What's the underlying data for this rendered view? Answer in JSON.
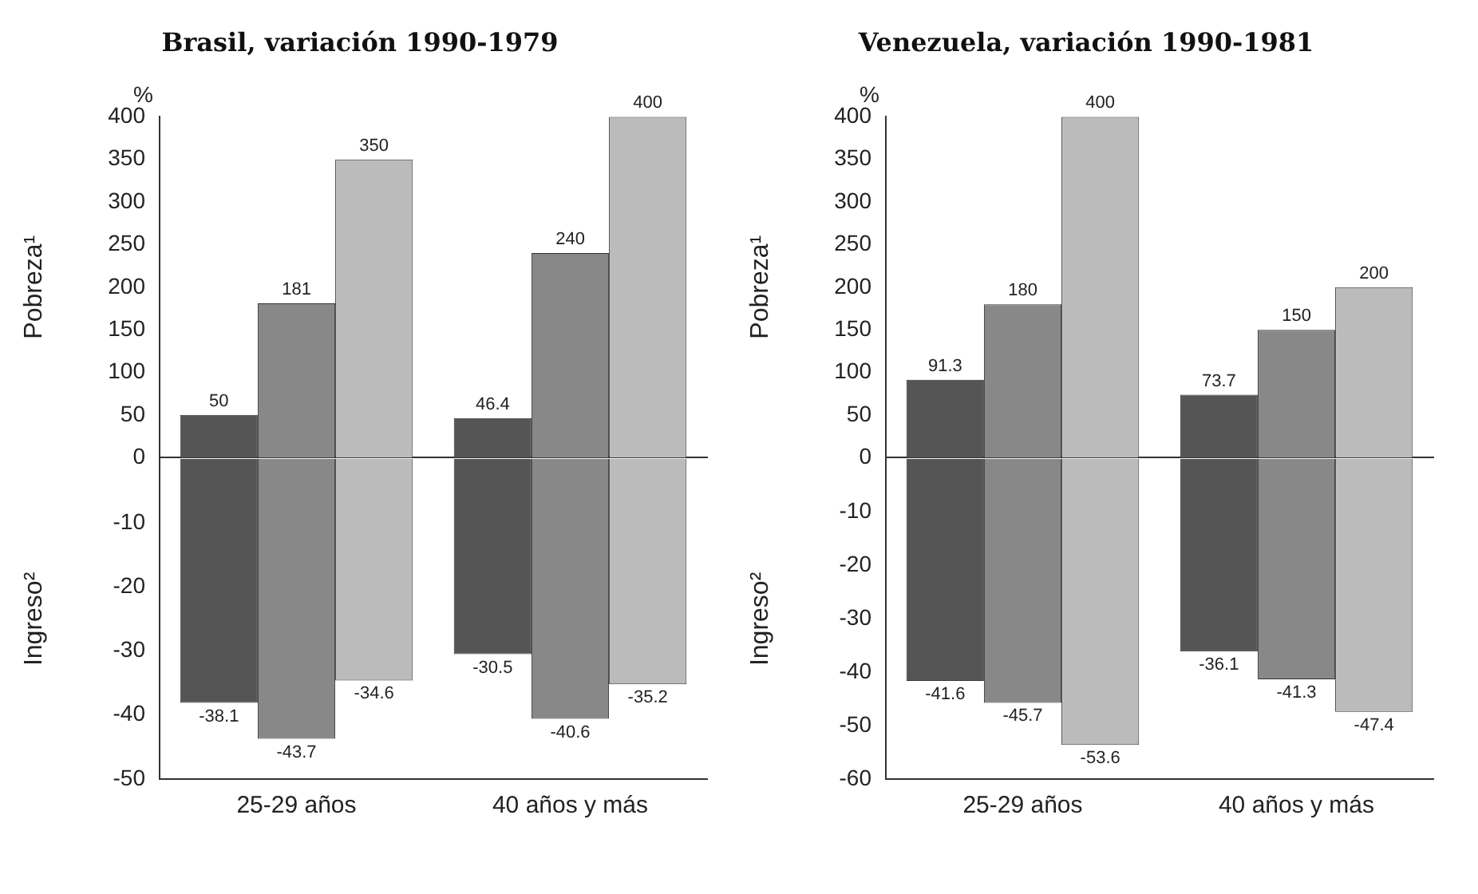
{
  "chart_data": [
    {
      "type": "bar",
      "title": "Brasil, variación 1990-1979",
      "ylabel": "Pobreza¹",
      "annotations": [
        "%"
      ],
      "categories": [
        null,
        null
      ],
      "tick_labels": "y",
      "ylim": [
        0,
        400
      ],
      "yticks": [
        0,
        50,
        100,
        150,
        200,
        250,
        300,
        350,
        400
      ],
      "data_labels": true,
      "grid": false,
      "legend": false,
      "series": [
        {
          "color": "#555555",
          "values": [
            50,
            46.4
          ]
        },
        {
          "color": "#888888",
          "values": [
            181,
            240
          ]
        },
        {
          "color": "#bbbbbb",
          "values": [
            350,
            400
          ]
        }
      ]
    },
    {
      "type": "bar",
      "ylabel": "Ingreso²",
      "categories": [
        "25-29 años",
        "40 años y más"
      ],
      "ylim": [
        -50,
        0
      ],
      "yticks": [
        -50,
        -40,
        -30,
        -20,
        -10
      ],
      "data_labels": true,
      "grid": false,
      "legend": false,
      "series": [
        {
          "color": "#555555",
          "values": [
            -38.1,
            -30.5
          ]
        },
        {
          "color": "#888888",
          "values": [
            -43.7,
            -40.6
          ]
        },
        {
          "color": "#bbbbbb",
          "values": [
            -34.6,
            -35.2
          ]
        }
      ]
    },
    {
      "type": "bar",
      "title": "Venezuela, variación 1990-1981",
      "ylabel": "Pobreza¹",
      "annotations": [
        "%"
      ],
      "categories": [
        null,
        null
      ],
      "tick_labels": "y",
      "ylim": [
        0,
        400
      ],
      "yticks": [
        0,
        50,
        100,
        150,
        200,
        250,
        300,
        350,
        400
      ],
      "data_labels": true,
      "grid": false,
      "legend": false,
      "series": [
        {
          "color": "#555555",
          "values": [
            91.3,
            73.7
          ]
        },
        {
          "color": "#888888",
          "values": [
            180,
            150
          ]
        },
        {
          "color": "#bbbbbb",
          "values": [
            400,
            200
          ]
        }
      ]
    },
    {
      "type": "bar",
      "ylabel": "Ingreso²",
      "categories": [
        "25-29 años",
        "40 años y más"
      ],
      "ylim": [
        -60,
        0
      ],
      "yticks": [
        -60,
        -50,
        -40,
        -30,
        -20,
        -10
      ],
      "data_labels": true,
      "grid": false,
      "legend": false,
      "series": [
        {
          "color": "#555555",
          "values": [
            -41.6,
            -36.1
          ]
        },
        {
          "color": "#888888",
          "values": [
            -45.7,
            -41.3
          ]
        },
        {
          "color": "#bbbbbb",
          "values": [
            -53.6,
            -47.4
          ]
        }
      ]
    }
  ]
}
